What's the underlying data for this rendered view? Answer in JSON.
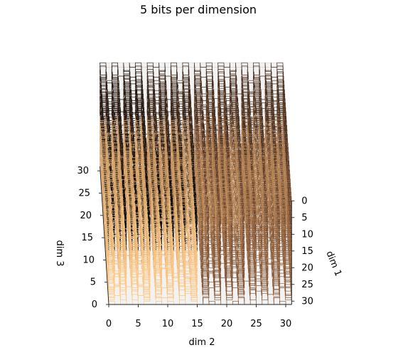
{
  "chart_data": {
    "type": "line3d",
    "title": "5 bits per dimension",
    "xlabel": "dim 2",
    "ylabel": "dim 1",
    "zlabel": "dim 3",
    "xticks": [
      "0",
      "5",
      "10",
      "15",
      "20",
      "25",
      "30"
    ],
    "yticks": [
      "0",
      "5",
      "10",
      "15",
      "20",
      "25",
      "30"
    ],
    "zticks": [
      "0",
      "5",
      "10",
      "15",
      "20",
      "25",
      "30"
    ],
    "xlim": [
      0,
      31
    ],
    "ylim": [
      0,
      31
    ],
    "zlim": [
      0,
      31
    ],
    "bits_per_dimension": 5,
    "curve": "3D Hilbert curve, 32768 points",
    "colormap": "copper",
    "color_stops": [
      "#000000",
      "#7d4f32",
      "#ffc77f"
    ],
    "grid": true
  }
}
